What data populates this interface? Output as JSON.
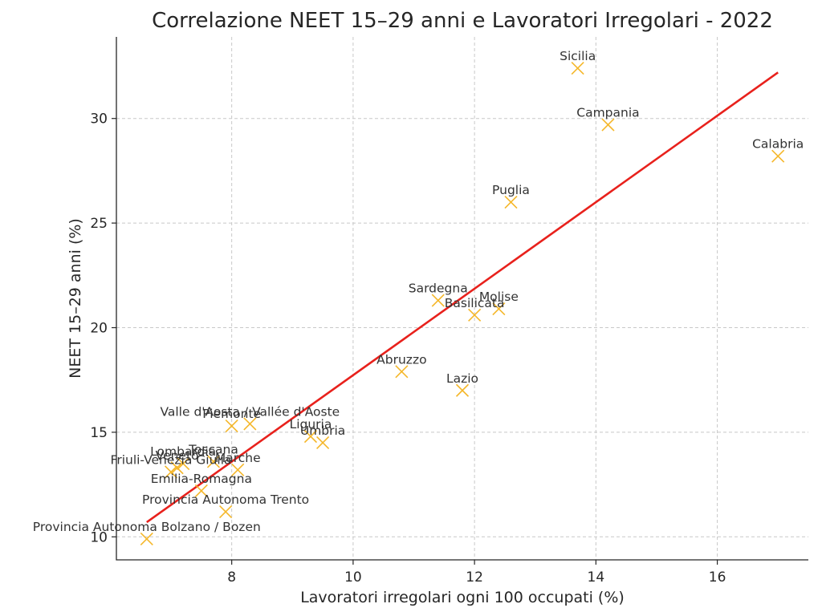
{
  "chart_data": {
    "type": "scatter",
    "title": "Correlazione NEET 15–29 anni e Lavoratori Irregolari - 2022",
    "xlabel": "Lavoratori irregolari ogni 100 occupati (%)",
    "ylabel": "NEET 15–29 anni (%)",
    "xlim": [
      6.1,
      17.5
    ],
    "ylim": [
      8.9,
      33.9
    ],
    "xticks": [
      8,
      10,
      12,
      14,
      16
    ],
    "yticks": [
      10,
      15,
      20,
      25,
      30
    ],
    "grid": true,
    "marker": "x",
    "colors": {
      "points": "#f5b72a",
      "trend": "#e8211c"
    },
    "trendline": {
      "x": [
        6.6,
        17.0
      ],
      "y": [
        10.7,
        32.2
      ]
    },
    "points": [
      {
        "label": "Sicilia",
        "x": 13.7,
        "y": 32.4
      },
      {
        "label": "Campania",
        "x": 14.2,
        "y": 29.7
      },
      {
        "label": "Calabria",
        "x": 17.0,
        "y": 28.2
      },
      {
        "label": "Puglia",
        "x": 12.6,
        "y": 26.0
      },
      {
        "label": "Sardegna",
        "x": 11.4,
        "y": 21.3
      },
      {
        "label": "Molise",
        "x": 12.4,
        "y": 20.9
      },
      {
        "label": "Basilicata",
        "x": 12.0,
        "y": 20.6
      },
      {
        "label": "Abruzzo",
        "x": 10.8,
        "y": 17.9
      },
      {
        "label": "Lazio",
        "x": 11.8,
        "y": 17.0
      },
      {
        "label": "Piemonte",
        "x": 8.0,
        "y": 15.3
      },
      {
        "label": "Valle d'Aosta / Vallée d'Aoste",
        "x": 8.3,
        "y": 15.4
      },
      {
        "label": "Liguria",
        "x": 9.3,
        "y": 14.8
      },
      {
        "label": "Umbria",
        "x": 9.5,
        "y": 14.5
      },
      {
        "label": "Toscana",
        "x": 7.7,
        "y": 13.6
      },
      {
        "label": "Lombardia",
        "x": 7.2,
        "y": 13.5
      },
      {
        "label": "Friuli-Venezia Giulia",
        "x": 7.0,
        "y": 13.1
      },
      {
        "label": "Veneto",
        "x": 7.1,
        "y": 13.3
      },
      {
        "label": "Marche",
        "x": 8.1,
        "y": 13.2
      },
      {
        "label": "Emilia-Romagna",
        "x": 7.5,
        "y": 12.2
      },
      {
        "label": "Provincia Autonoma Trento",
        "x": 7.9,
        "y": 11.2
      },
      {
        "label": "Provincia Autonoma Bolzano / Bozen",
        "x": 6.6,
        "y": 9.9
      }
    ]
  }
}
